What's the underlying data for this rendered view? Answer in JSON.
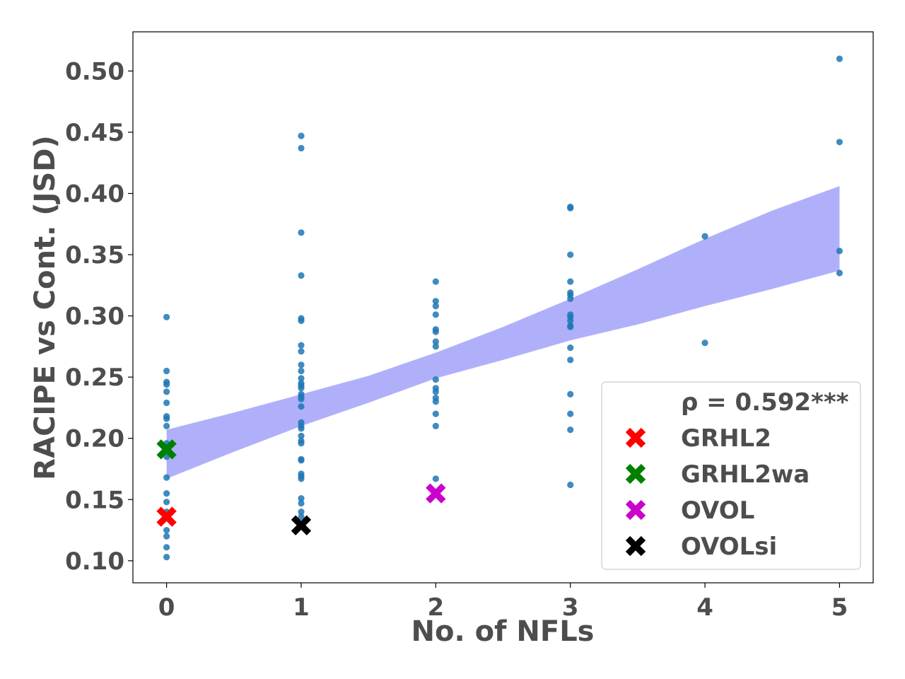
{
  "chart_data": {
    "type": "scatter",
    "xlabel": "No. of NFLs",
    "ylabel": "RACIPE vs Cont. (JSD)",
    "xlim": [
      -0.25,
      5.25
    ],
    "ylim": [
      0.082,
      0.532
    ],
    "xticks": [
      0,
      1,
      2,
      3,
      4,
      5
    ],
    "yticks": [
      0.1,
      0.15,
      0.2,
      0.25,
      0.3,
      0.35,
      0.4,
      0.45,
      0.5
    ],
    "ytick_labels": [
      "0.10",
      "0.15",
      "0.20",
      "0.25",
      "0.30",
      "0.35",
      "0.40",
      "0.45",
      "0.50"
    ],
    "xtick_labels": [
      "0",
      "1",
      "2",
      "3",
      "4",
      "5"
    ],
    "colors": {
      "points": "#1f77b4",
      "band": "#b0b0fa",
      "GRHL2": "#ff0000",
      "GRHL2wa": "#008000",
      "OVOL": "#cc00cc",
      "OVOLsi": "#000000",
      "text": "#4d4d4d"
    },
    "points": [
      {
        "x": 0,
        "y": 0.299
      },
      {
        "x": 0,
        "y": 0.255
      },
      {
        "x": 0,
        "y": 0.246
      },
      {
        "x": 0,
        "y": 0.244
      },
      {
        "x": 0,
        "y": 0.238
      },
      {
        "x": 0,
        "y": 0.229
      },
      {
        "x": 0,
        "y": 0.218
      },
      {
        "x": 0,
        "y": 0.216
      },
      {
        "x": 0,
        "y": 0.21
      },
      {
        "x": 0,
        "y": 0.196
      },
      {
        "x": 0,
        "y": 0.185
      },
      {
        "x": 0,
        "y": 0.168
      },
      {
        "x": 0,
        "y": 0.155
      },
      {
        "x": 0,
        "y": 0.148
      },
      {
        "x": 0,
        "y": 0.14
      },
      {
        "x": 0,
        "y": 0.135
      },
      {
        "x": 0,
        "y": 0.125
      },
      {
        "x": 0,
        "y": 0.12
      },
      {
        "x": 0,
        "y": 0.111
      },
      {
        "x": 0,
        "y": 0.103
      },
      {
        "x": 1,
        "y": 0.447
      },
      {
        "x": 1,
        "y": 0.437
      },
      {
        "x": 1,
        "y": 0.368
      },
      {
        "x": 1,
        "y": 0.333
      },
      {
        "x": 1,
        "y": 0.298
      },
      {
        "x": 1,
        "y": 0.296
      },
      {
        "x": 1,
        "y": 0.276
      },
      {
        "x": 1,
        "y": 0.271
      },
      {
        "x": 1,
        "y": 0.26
      },
      {
        "x": 1,
        "y": 0.255
      },
      {
        "x": 1,
        "y": 0.249
      },
      {
        "x": 1,
        "y": 0.245
      },
      {
        "x": 1,
        "y": 0.243
      },
      {
        "x": 1,
        "y": 0.241
      },
      {
        "x": 1,
        "y": 0.236
      },
      {
        "x": 1,
        "y": 0.234
      },
      {
        "x": 1,
        "y": 0.232
      },
      {
        "x": 1,
        "y": 0.226
      },
      {
        "x": 1,
        "y": 0.213
      },
      {
        "x": 1,
        "y": 0.21
      },
      {
        "x": 1,
        "y": 0.208
      },
      {
        "x": 1,
        "y": 0.202
      },
      {
        "x": 1,
        "y": 0.198
      },
      {
        "x": 1,
        "y": 0.196
      },
      {
        "x": 1,
        "y": 0.183
      },
      {
        "x": 1,
        "y": 0.182
      },
      {
        "x": 1,
        "y": 0.171
      },
      {
        "x": 1,
        "y": 0.169
      },
      {
        "x": 1,
        "y": 0.167
      },
      {
        "x": 1,
        "y": 0.151
      },
      {
        "x": 1,
        "y": 0.147
      },
      {
        "x": 1,
        "y": 0.14
      },
      {
        "x": 1,
        "y": 0.136
      },
      {
        "x": 2,
        "y": 0.328
      },
      {
        "x": 2,
        "y": 0.312
      },
      {
        "x": 2,
        "y": 0.308
      },
      {
        "x": 2,
        "y": 0.301
      },
      {
        "x": 2,
        "y": 0.289
      },
      {
        "x": 2,
        "y": 0.287
      },
      {
        "x": 2,
        "y": 0.279
      },
      {
        "x": 2,
        "y": 0.275
      },
      {
        "x": 2,
        "y": 0.248
      },
      {
        "x": 2,
        "y": 0.241
      },
      {
        "x": 2,
        "y": 0.238
      },
      {
        "x": 2,
        "y": 0.233
      },
      {
        "x": 2,
        "y": 0.23
      },
      {
        "x": 2,
        "y": 0.22
      },
      {
        "x": 2,
        "y": 0.21
      },
      {
        "x": 2,
        "y": 0.167
      },
      {
        "x": 3,
        "y": 0.389
      },
      {
        "x": 3,
        "y": 0.388
      },
      {
        "x": 3,
        "y": 0.35
      },
      {
        "x": 3,
        "y": 0.328
      },
      {
        "x": 3,
        "y": 0.319
      },
      {
        "x": 3,
        "y": 0.317
      },
      {
        "x": 3,
        "y": 0.314
      },
      {
        "x": 3,
        "y": 0.301
      },
      {
        "x": 3,
        "y": 0.299
      },
      {
        "x": 3,
        "y": 0.296
      },
      {
        "x": 3,
        "y": 0.292
      },
      {
        "x": 3,
        "y": 0.291
      },
      {
        "x": 3,
        "y": 0.274
      },
      {
        "x": 3,
        "y": 0.264
      },
      {
        "x": 3,
        "y": 0.236
      },
      {
        "x": 3,
        "y": 0.22
      },
      {
        "x": 3,
        "y": 0.207
      },
      {
        "x": 3,
        "y": 0.162
      },
      {
        "x": 4,
        "y": 0.365
      },
      {
        "x": 4,
        "y": 0.278
      },
      {
        "x": 5,
        "y": 0.51
      },
      {
        "x": 5,
        "y": 0.442
      },
      {
        "x": 5,
        "y": 0.353
      },
      {
        "x": 5,
        "y": 0.335
      }
    ],
    "band": {
      "x": [
        0,
        0.5,
        1,
        1.5,
        2,
        2.5,
        3,
        3.5,
        4,
        4.5,
        5
      ],
      "upper": [
        0.207,
        0.221,
        0.236,
        0.251,
        0.27,
        0.291,
        0.314,
        0.338,
        0.363,
        0.386,
        0.406
      ],
      "lower": [
        0.167,
        0.189,
        0.21,
        0.229,
        0.249,
        0.264,
        0.28,
        0.293,
        0.308,
        0.322,
        0.337
      ]
    },
    "highlights": [
      {
        "name": "GRHL2",
        "x": 0,
        "y": 0.136,
        "color": "#ff0000"
      },
      {
        "name": "GRHL2wa",
        "x": 0,
        "y": 0.191,
        "color": "#008000"
      },
      {
        "name": "OVOL",
        "x": 2,
        "y": 0.155,
        "color": "#cc00cc"
      },
      {
        "name": "OVOLsi",
        "x": 1,
        "y": 0.129,
        "color": "#000000"
      }
    ],
    "legend": {
      "placement": "lower-right",
      "title": "ρ = 0.592***",
      "entries": [
        {
          "label": "GRHL2",
          "color": "#ff0000"
        },
        {
          "label": "GRHL2wa",
          "color": "#008000"
        },
        {
          "label": "OVOL",
          "color": "#cc00cc"
        },
        {
          "label": "OVOLsi",
          "color": "#000000"
        }
      ]
    },
    "grid": false
  }
}
